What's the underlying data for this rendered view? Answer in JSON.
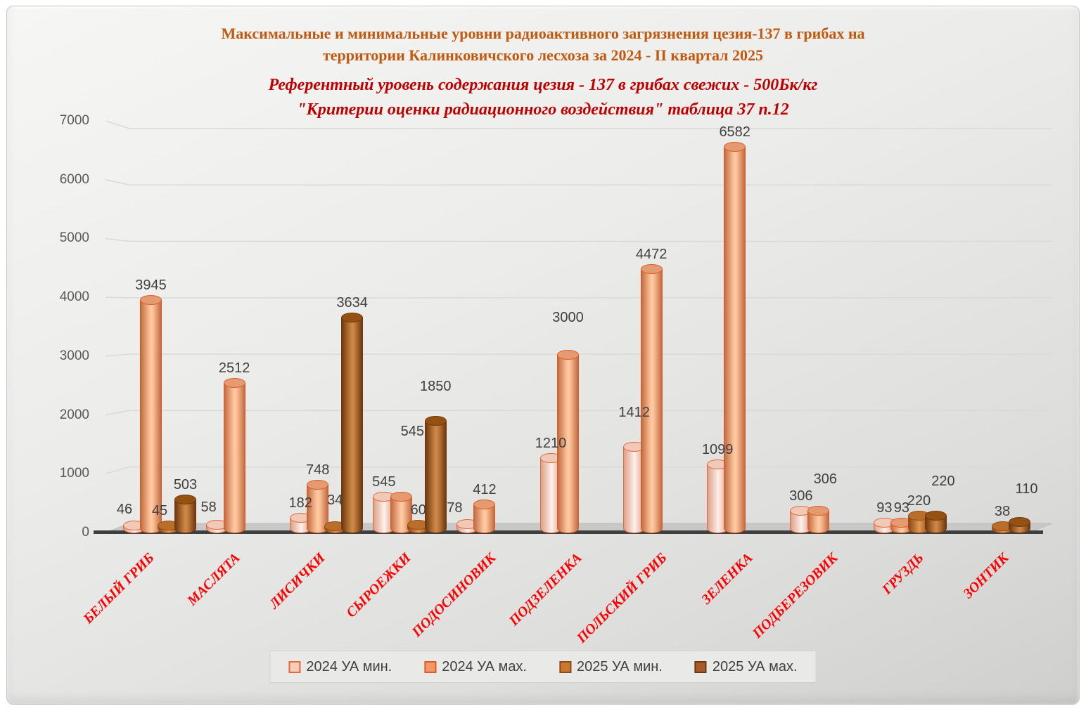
{
  "title": {
    "lines": [
      "Максимальные и минимальные уровни радиоактивного загрязнения цезия-137 в грибах на",
      "территории Калинковичского лесхоза за 2024 - II квартал 2025"
    ],
    "color": "#c2590f"
  },
  "subtitle": {
    "lines": [
      "Референтный уровень содержания цезия - 137 в грибах свежих - 500Бк/кг",
      "\"Критерии оценки радиационного воздействия\" таблица 37 п.12"
    ],
    "color": "#c00000"
  },
  "chart_data": {
    "type": "bar",
    "style": "3d-cylinder",
    "categories": [
      "БЕЛЫЙ ГРИБ",
      "МАСЛЯТА",
      "ЛИСИЧКИ",
      "СЫРОЕЖКИ",
      "ПОДОСИНОВИК",
      "ПОДЗЕЛЕНКА",
      "ПОЛЬСКИЙ ГРИБ",
      "ЗЕЛЕНКА",
      "ПОДБЕРЕЗОВИК",
      "ГРУЗДЬ",
      "ЗОНТИК"
    ],
    "series": [
      {
        "name": "2024 УА мин.",
        "values": [
          46,
          58,
          182,
          545,
          78,
          1210,
          1412,
          1099,
          306,
          93,
          null
        ],
        "colors": {
          "stroke": "#e06a40",
          "edge": "#dca18a",
          "mid": "#f7dcd2",
          "light": "#fdf2ec",
          "top": "#f1c9b8",
          "legend_fill": "#f5cdb9",
          "legend_border": "#e8673c"
        }
      },
      {
        "name": "2024 УА мах.",
        "values": [
          3945,
          2512,
          748,
          545,
          412,
          3000,
          4472,
          6582,
          306,
          93,
          null
        ],
        "colors": {
          "stroke": "#de5a20",
          "edge": "#c06c44",
          "mid": "#f8b98e",
          "light": "#fecda8",
          "top": "#e59b72",
          "legend_fill": "#f09a6c",
          "legend_border": "#de5a20"
        }
      },
      {
        "name": "2025 УА мин.",
        "values": [
          45,
          null,
          34,
          60,
          null,
          null,
          null,
          null,
          null,
          220,
          38
        ],
        "colors": {
          "stroke": "#9c4e14",
          "edge": "#8e4a18",
          "mid": "#ce8440",
          "light": "#e09a58",
          "top": "#b96e2a",
          "legend_fill": "#c9782f",
          "legend_border": "#8c4a1a"
        }
      },
      {
        "name": "2025 УА мах.",
        "values": [
          503,
          null,
          3634,
          1850,
          null,
          null,
          null,
          null,
          null,
          220,
          110
        ],
        "colors": {
          "stroke": "#6e3910",
          "edge": "#70380e",
          "mid": "#be7a3c",
          "light": "#d08a48",
          "top": "#955112",
          "legend_fill": "#a75c28",
          "legend_border": "#6b3810"
        }
      }
    ],
    "ylim": [
      0,
      7000
    ],
    "ytick_step": 1000,
    "yticks": [
      0,
      1000,
      2000,
      3000,
      4000,
      5000,
      6000,
      7000
    ],
    "grid": true,
    "legend_position": "bottom",
    "category_label_color": "#ff0000",
    "data_label_color": "#3f3f3f",
    "axis_label_color": "#595959",
    "gridline_color": "#d9d9d9",
    "floor_fill": "#c8c8c8",
    "floor_edge_color": "#3f3f3f",
    "layout_hints": {
      "label_adjust": {
        "0,0": [
          -13,
          -2
        ],
        "0,2": [
          -12,
          0
        ],
        "1,0": [
          -12,
          -4
        ],
        "2,2": [
          0,
          -16
        ],
        "3,1": [
          16,
          -72
        ],
        "3,3": [
          0,
          -28
        ],
        "4,0": [
          -18,
          -2
        ],
        "5,1": [
          0,
          -32
        ],
        "6,0": [
          0,
          -28
        ],
        "8,1": [
          10,
          -24
        ],
        "9,3": [
          10,
          -28
        ],
        "10,3": [
          10,
          -26
        ]
      }
    }
  }
}
